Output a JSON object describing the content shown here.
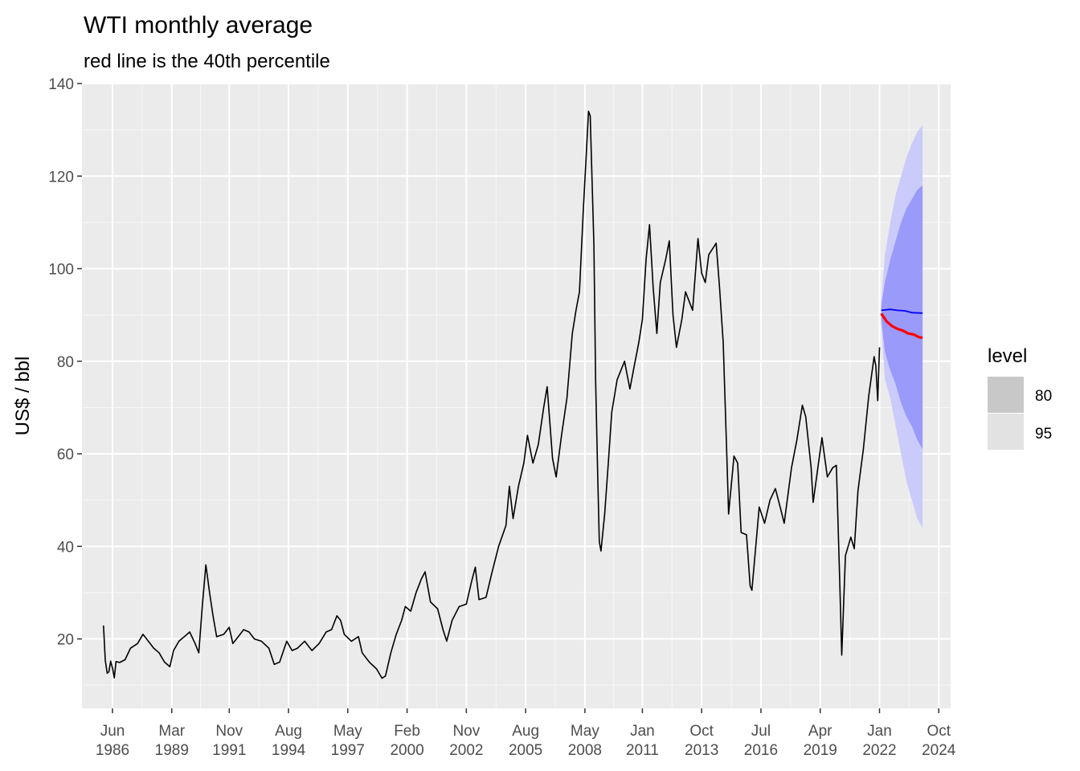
{
  "chart_data": {
    "type": "line",
    "title": "WTI monthly average",
    "subtitle": "red line is the 40th percentile",
    "xlabel": "",
    "ylabel": "US$ / bbl",
    "xlim": [
      1985.0,
      2025.3
    ],
    "ylim": [
      5,
      140
    ],
    "grid": true,
    "y_ticks": [
      20,
      40,
      60,
      80,
      100,
      120,
      140
    ],
    "x_ticks": [
      {
        "t": 1986.417,
        "l1": "Jun",
        "l2": "1986"
      },
      {
        "t": 1989.167,
        "l1": "Mar",
        "l2": "1989"
      },
      {
        "t": 1991.833,
        "l1": "Nov",
        "l2": "1991"
      },
      {
        "t": 1994.583,
        "l1": "Aug",
        "l2": "1994"
      },
      {
        "t": 1997.333,
        "l1": "May",
        "l2": "1997"
      },
      {
        "t": 2000.083,
        "l1": "Feb",
        "l2": "2000"
      },
      {
        "t": 2002.833,
        "l1": "Nov",
        "l2": "2002"
      },
      {
        "t": 2005.583,
        "l1": "Aug",
        "l2": "2005"
      },
      {
        "t": 2008.333,
        "l1": "May",
        "l2": "2008"
      },
      {
        "t": 2011.0,
        "l1": "Jan",
        "l2": "2011"
      },
      {
        "t": 2013.75,
        "l1": "Oct",
        "l2": "2013"
      },
      {
        "t": 2016.5,
        "l1": "Jul",
        "l2": "2016"
      },
      {
        "t": 2019.25,
        "l1": "Apr",
        "l2": "2019"
      },
      {
        "t": 2022.0,
        "l1": "Jan",
        "l2": "2022"
      },
      {
        "t": 2024.75,
        "l1": "Oct",
        "l2": "2024"
      }
    ],
    "legend": {
      "title": "level",
      "position": "right",
      "items": [
        {
          "label": "80",
          "color": "#c8c8c8"
        },
        {
          "label": "95",
          "color": "#e2e2e2"
        }
      ]
    },
    "colors": {
      "history": "#000000",
      "mean_forecast": "#0000ff",
      "percentile_40": "#ff0000",
      "band_80": "#9a9afa",
      "band_95": "#cbcbfb",
      "panel": "#ebebeb",
      "grid": "#ffffff"
    },
    "series": [
      {
        "data": [
          [
            1986.0,
            22.9
          ],
          [
            1986.08,
            15.4
          ],
          [
            1986.17,
            12.6
          ],
          [
            1986.25,
            12.9
          ],
          [
            1986.33,
            15.2
          ],
          [
            1986.42,
            13.6
          ],
          [
            1986.5,
            11.6
          ],
          [
            1986.58,
            15.1
          ],
          [
            1986.75,
            14.9
          ],
          [
            1987.0,
            15.5
          ],
          [
            1987.25,
            18.0
          ],
          [
            1987.58,
            19.0
          ],
          [
            1987.83,
            21.0
          ],
          [
            1988.0,
            20.0
          ],
          [
            1988.33,
            18.0
          ],
          [
            1988.58,
            17.0
          ],
          [
            1988.83,
            15.0
          ],
          [
            1989.08,
            14.0
          ],
          [
            1989.25,
            17.5
          ],
          [
            1989.5,
            19.5
          ],
          [
            1989.75,
            20.5
          ],
          [
            1990.0,
            21.5
          ],
          [
            1990.25,
            19.0
          ],
          [
            1990.42,
            17.0
          ],
          [
            1990.58,
            27.0
          ],
          [
            1990.75,
            36.0
          ],
          [
            1990.92,
            30.0
          ],
          [
            1991.08,
            25.0
          ],
          [
            1991.25,
            20.5
          ],
          [
            1991.58,
            21.0
          ],
          [
            1991.83,
            22.5
          ],
          [
            1992.0,
            19.0
          ],
          [
            1992.25,
            20.5
          ],
          [
            1992.5,
            22.0
          ],
          [
            1992.75,
            21.5
          ],
          [
            1993.0,
            20.0
          ],
          [
            1993.33,
            19.5
          ],
          [
            1993.67,
            18.0
          ],
          [
            1993.92,
            14.5
          ],
          [
            1994.17,
            15.0
          ],
          [
            1994.5,
            19.5
          ],
          [
            1994.75,
            17.5
          ],
          [
            1995.0,
            18.0
          ],
          [
            1995.33,
            19.5
          ],
          [
            1995.67,
            17.5
          ],
          [
            1996.0,
            19.0
          ],
          [
            1996.33,
            21.5
          ],
          [
            1996.58,
            22.0
          ],
          [
            1996.83,
            25.0
          ],
          [
            1997.0,
            24.0
          ],
          [
            1997.17,
            21.0
          ],
          [
            1997.5,
            19.5
          ],
          [
            1997.83,
            20.5
          ],
          [
            1998.0,
            17.0
          ],
          [
            1998.33,
            15.0
          ],
          [
            1998.67,
            13.5
          ],
          [
            1998.92,
            11.5
          ],
          [
            1999.08,
            12.0
          ],
          [
            1999.33,
            17.0
          ],
          [
            1999.58,
            21.0
          ],
          [
            1999.83,
            24.0
          ],
          [
            2000.0,
            27.0
          ],
          [
            2000.25,
            26.0
          ],
          [
            2000.5,
            30.0
          ],
          [
            2000.75,
            33.0
          ],
          [
            2000.92,
            34.5
          ],
          [
            2001.17,
            28.0
          ],
          [
            2001.5,
            26.5
          ],
          [
            2001.75,
            22.0
          ],
          [
            2001.92,
            19.5
          ],
          [
            2002.17,
            24.0
          ],
          [
            2002.5,
            27.0
          ],
          [
            2002.83,
            27.5
          ],
          [
            2003.08,
            32.5
          ],
          [
            2003.25,
            35.5
          ],
          [
            2003.42,
            28.5
          ],
          [
            2003.75,
            29.0
          ],
          [
            2004.0,
            34.0
          ],
          [
            2004.33,
            40.0
          ],
          [
            2004.67,
            44.5
          ],
          [
            2004.83,
            53.0
          ],
          [
            2005.0,
            46.0
          ],
          [
            2005.25,
            53.0
          ],
          [
            2005.5,
            58.0
          ],
          [
            2005.67,
            64.0
          ],
          [
            2005.92,
            58.0
          ],
          [
            2006.17,
            62.0
          ],
          [
            2006.42,
            70.0
          ],
          [
            2006.58,
            74.5
          ],
          [
            2006.83,
            59.0
          ],
          [
            2007.0,
            55.0
          ],
          [
            2007.25,
            64.0
          ],
          [
            2007.5,
            72.0
          ],
          [
            2007.75,
            86.0
          ],
          [
            2007.92,
            91.0
          ],
          [
            2008.08,
            95.0
          ],
          [
            2008.25,
            112.0
          ],
          [
            2008.5,
            134.0
          ],
          [
            2008.58,
            133.0
          ],
          [
            2008.75,
            105.0
          ],
          [
            2008.83,
            76.0
          ],
          [
            2008.92,
            57.0
          ],
          [
            2009.0,
            41.0
          ],
          [
            2009.08,
            39.0
          ],
          [
            2009.25,
            47.0
          ],
          [
            2009.42,
            58.0
          ],
          [
            2009.58,
            69.0
          ],
          [
            2009.83,
            76.0
          ],
          [
            2010.0,
            78.0
          ],
          [
            2010.17,
            80.0
          ],
          [
            2010.42,
            74.0
          ],
          [
            2010.58,
            78.0
          ],
          [
            2010.83,
            84.0
          ],
          [
            2011.0,
            89.0
          ],
          [
            2011.17,
            102.0
          ],
          [
            2011.33,
            109.5
          ],
          [
            2011.5,
            96.0
          ],
          [
            2011.67,
            86.0
          ],
          [
            2011.83,
            97.0
          ],
          [
            2012.08,
            102.0
          ],
          [
            2012.25,
            106.0
          ],
          [
            2012.42,
            90.0
          ],
          [
            2012.58,
            83.0
          ],
          [
            2012.83,
            89.0
          ],
          [
            2013.0,
            95.0
          ],
          [
            2013.33,
            91.0
          ],
          [
            2013.58,
            106.5
          ],
          [
            2013.75,
            99.0
          ],
          [
            2013.92,
            97.0
          ],
          [
            2014.08,
            103.0
          ],
          [
            2014.42,
            105.5
          ],
          [
            2014.58,
            96.0
          ],
          [
            2014.75,
            84.0
          ],
          [
            2014.92,
            59.0
          ],
          [
            2015.0,
            47.0
          ],
          [
            2015.25,
            59.5
          ],
          [
            2015.42,
            58.0
          ],
          [
            2015.58,
            43.0
          ],
          [
            2015.83,
            42.5
          ],
          [
            2016.0,
            31.5
          ],
          [
            2016.08,
            30.5
          ],
          [
            2016.42,
            48.5
          ],
          [
            2016.67,
            45.0
          ],
          [
            2016.92,
            50.0
          ],
          [
            2017.17,
            52.5
          ],
          [
            2017.42,
            48.0
          ],
          [
            2017.58,
            45.0
          ],
          [
            2017.92,
            57.0
          ],
          [
            2018.17,
            63.0
          ],
          [
            2018.42,
            70.5
          ],
          [
            2018.58,
            68.0
          ],
          [
            2018.83,
            57.0
          ],
          [
            2018.92,
            49.5
          ],
          [
            2019.17,
            58.0
          ],
          [
            2019.33,
            63.5
          ],
          [
            2019.58,
            55.0
          ],
          [
            2019.83,
            57.0
          ],
          [
            2020.0,
            57.5
          ],
          [
            2020.17,
            30.0
          ],
          [
            2020.25,
            16.5
          ],
          [
            2020.42,
            38.0
          ],
          [
            2020.67,
            42.0
          ],
          [
            2020.83,
            39.5
          ],
          [
            2021.0,
            52.0
          ],
          [
            2021.25,
            61.0
          ],
          [
            2021.5,
            72.5
          ],
          [
            2021.75,
            81.0
          ],
          [
            2021.83,
            79.0
          ],
          [
            2021.92,
            71.5
          ],
          [
            2022.0,
            83.0
          ]
        ]
      },
      {
        "name": "",
        "data": [
          [
            2022.083,
            91.0
          ],
          [
            2022.5,
            91.2
          ],
          [
            2022.83,
            91.0
          ],
          [
            2023.17,
            90.9
          ],
          [
            2023.5,
            90.5
          ],
          [
            2024.0,
            90.4
          ]
        ]
      },
      {
        "name": "",
        "data": [
          [
            2022.083,
            90.3
          ],
          [
            2022.33,
            88.6
          ],
          [
            2022.58,
            87.6
          ],
          [
            2022.83,
            87.0
          ],
          [
            2023.08,
            86.6
          ],
          [
            2023.33,
            86.0
          ],
          [
            2023.58,
            85.8
          ],
          [
            2023.83,
            85.2
          ],
          [
            2024.0,
            85.1
          ]
        ]
      }
    ],
    "bands": [
      {
        "level": "95",
        "x": [
          2022.083,
          2022.25,
          2022.5,
          2022.75,
          2023.0,
          2023.25,
          2023.5,
          2023.75,
          2024.0
        ],
        "lo": [
          88,
          76,
          72,
          66,
          60,
          54,
          50,
          46,
          44
        ],
        "hi": [
          93,
          103,
          110,
          116,
          120,
          124,
          127,
          129.5,
          131
        ]
      },
      {
        "level": "80",
        "x": [
          2022.083,
          2022.25,
          2022.5,
          2022.75,
          2023.0,
          2023.25,
          2023.5,
          2023.75,
          2024.0
        ],
        "lo": [
          89,
          82,
          78,
          75,
          71,
          68,
          66,
          63,
          61
        ],
        "hi": [
          92,
          97,
          102,
          106,
          110,
          113,
          115,
          117,
          118
        ]
      }
    ]
  }
}
